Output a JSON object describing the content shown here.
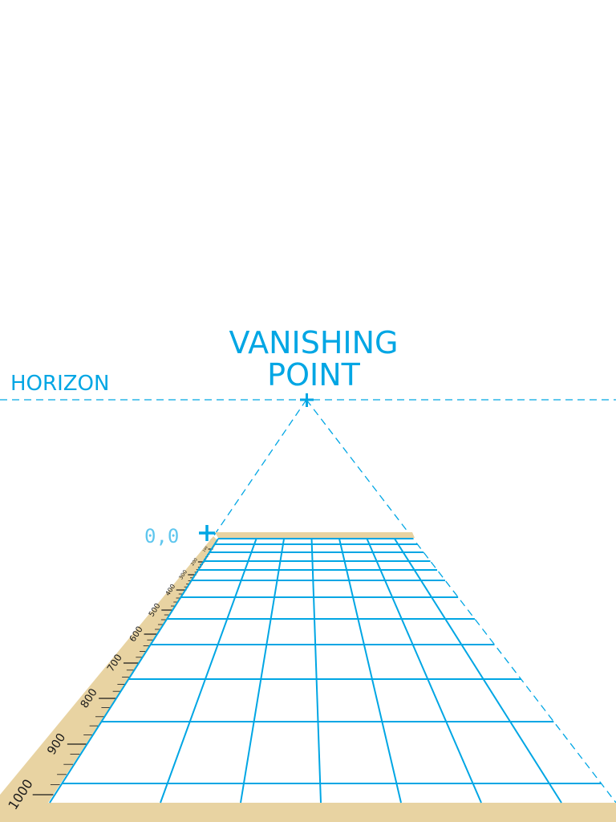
{
  "labels": {
    "title_line1": "VANISHING",
    "title_line2": "POINT",
    "horizon": "HORIZON",
    "origin": "0,0"
  },
  "ruler": {
    "ticks": [
      {
        "value": "100"
      },
      {
        "value": "200"
      },
      {
        "value": "300"
      },
      {
        "value": "400"
      },
      {
        "value": "500"
      },
      {
        "value": "600"
      },
      {
        "value": "700"
      },
      {
        "value": "800"
      },
      {
        "value": "900"
      },
      {
        "value": "1000"
      }
    ]
  },
  "colors": {
    "accent": "#00a6e4",
    "ruler": "#e8d3a2",
    "ruler_ink": "#1a1a1a"
  }
}
